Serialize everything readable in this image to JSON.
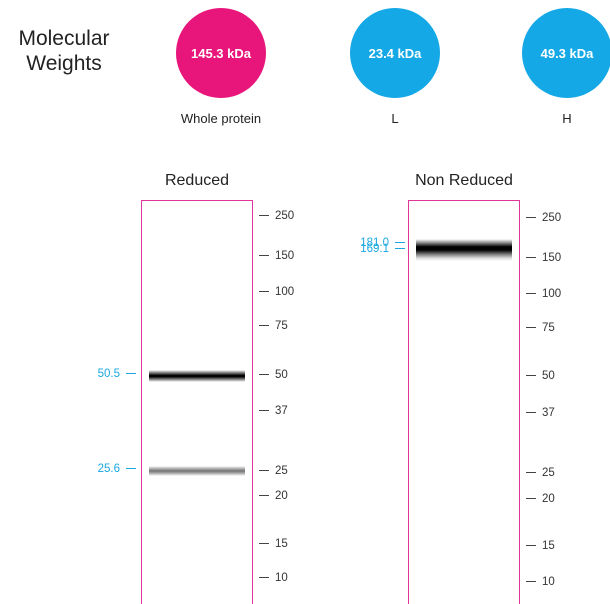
{
  "title_line1": "Molecular",
  "title_line2": "Weights",
  "colors": {
    "whole": "#e8157a",
    "chain": "#14a8e6",
    "lane_border": "#e0369a",
    "peak_label": "#1aa7e0"
  },
  "circles": [
    {
      "value": "145.3 kDa",
      "label": "Whole protein",
      "color": "#e8157a"
    },
    {
      "value": "23.4 kDa",
      "label": "L",
      "color": "#14a8e6"
    },
    {
      "value": "49.3 kDa",
      "label": "H",
      "color": "#14a8e6"
    }
  ],
  "reduced": {
    "title": "Reduced",
    "markers": [
      "250",
      "150",
      "100",
      "75",
      "50",
      "37",
      "25",
      "20",
      "15",
      "10"
    ],
    "peaks": [
      {
        "label": "50.5",
        "intensity": 1.0
      },
      {
        "label": "25.6",
        "intensity": 0.45
      }
    ]
  },
  "non_reduced": {
    "title": "Non Reduced",
    "markers": [
      "250",
      "150",
      "100",
      "75",
      "50",
      "37",
      "25",
      "20",
      "15",
      "10"
    ],
    "peaks": [
      {
        "label": "181.0",
        "intensity": 0.3
      },
      {
        "label": "169.1",
        "intensity": 1.0
      }
    ]
  }
}
